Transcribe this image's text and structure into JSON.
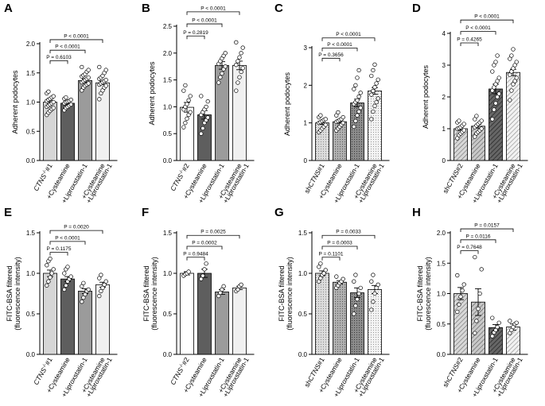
{
  "chart_data": [
    {
      "panel": "A",
      "type": "bar",
      "ylabel": "Adherent podocytes",
      "ylim": [
        0,
        2.0
      ],
      "yticks": [
        "0.0",
        "0.5",
        "1.0",
        "1.5",
        "2.0"
      ],
      "categories": [
        {
          "pre": "CTNS",
          "sup": "-/-",
          "post": "#1",
          "italic_pre": true
        },
        {
          "pre": "+Cysteamine"
        },
        {
          "pre": "+Liproxstatin-1"
        },
        {
          "pre": "+Cysteamine",
          "line2": "+Liproxstatin-1"
        }
      ],
      "values": [
        1.0,
        0.98,
        1.37,
        1.33
      ],
      "sem": [
        0.03,
        0.025,
        0.03,
        0.03
      ],
      "fills": [
        "solid-light",
        "solid-dark",
        "solid-mid",
        "solid-pale"
      ],
      "points": [
        [
          0.78,
          0.82,
          0.85,
          0.88,
          0.9,
          0.92,
          0.94,
          0.96,
          0.98,
          1.0,
          1.02,
          1.04,
          1.06,
          1.08,
          1.1,
          1.15,
          1.18
        ],
        [
          0.86,
          0.9,
          0.92,
          0.94,
          0.96,
          0.98,
          1.0,
          1.01,
          1.02,
          1.04,
          1.06,
          1.08
        ],
        [
          1.2,
          1.25,
          1.28,
          1.3,
          1.32,
          1.34,
          1.36,
          1.38,
          1.4,
          1.42,
          1.44,
          1.46,
          1.48,
          1.52,
          1.55,
          1.6
        ],
        [
          1.05,
          1.15,
          1.2,
          1.25,
          1.28,
          1.3,
          1.32,
          1.34,
          1.36,
          1.38,
          1.4,
          1.42,
          1.45,
          1.5,
          1.55,
          1.6
        ]
      ],
      "comparisons": [
        {
          "from": 0,
          "to": 1,
          "label": "P = 0.6103"
        },
        {
          "from": 0,
          "to": 2,
          "label": "P < 0.0001"
        },
        {
          "from": 0,
          "to": 3,
          "label": "P < 0.0001"
        }
      ]
    },
    {
      "panel": "B",
      "type": "bar",
      "ylabel": "Adherent podocytes",
      "ylim": [
        0,
        2.5
      ],
      "yticks": [
        "0.0",
        "0.5",
        "1.0",
        "1.5",
        "2.0",
        "2.5"
      ],
      "categories": [
        {
          "pre": "CTNS",
          "sup": "-/-",
          "post": "#2",
          "italic_pre": true
        },
        {
          "pre": "+Cysteamine"
        },
        {
          "pre": "+Liproxstatin-1"
        },
        {
          "pre": "+Cysteamine",
          "line2": "+Liproxstatin-1"
        }
      ],
      "values": [
        0.99,
        0.85,
        1.77,
        1.77
      ],
      "sem": [
        0.09,
        0.08,
        0.07,
        0.08
      ],
      "fills": [
        "open",
        "solid-dark",
        "solid-mid",
        "solid-pale"
      ],
      "points": [
        [
          0.62,
          0.7,
          0.78,
          0.85,
          0.9,
          0.95,
          1.0,
          1.05,
          1.12,
          1.2,
          1.3,
          1.4
        ],
        [
          0.5,
          0.6,
          0.7,
          0.75,
          0.8,
          0.85,
          0.9,
          0.95,
          1.0,
          1.1,
          1.2
        ],
        [
          1.45,
          1.55,
          1.62,
          1.7,
          1.75,
          1.8,
          1.85,
          1.9,
          1.95,
          2.0
        ],
        [
          1.3,
          1.45,
          1.55,
          1.65,
          1.72,
          1.78,
          1.85,
          1.92,
          2.0,
          2.1,
          2.2
        ]
      ],
      "comparisons": [
        {
          "from": 0,
          "to": 1,
          "label": "P = 0.2819"
        },
        {
          "from": 0,
          "to": 2,
          "label": "P < 0.0001"
        },
        {
          "from": 0,
          "to": 3,
          "label": "P < 0.0001"
        }
      ]
    },
    {
      "panel": "C",
      "type": "bar",
      "ylabel": "Adherent podocytes",
      "ylim": [
        0,
        3
      ],
      "yticks": [
        "0",
        "1",
        "2",
        "3"
      ],
      "categories": [
        {
          "pre": "sh",
          "mid": "CTNS",
          "post": "#1",
          "italic_mid": true
        },
        {
          "pre": "+Cysteamine"
        },
        {
          "pre": "+Liproxstatin-1"
        },
        {
          "pre": "+Cysteamine",
          "line2": "+Liproxstatin-1"
        }
      ],
      "values": [
        1.0,
        1.03,
        1.53,
        1.85
      ],
      "sem": [
        0.04,
        0.04,
        0.1,
        0.09
      ],
      "fills": [
        "dot-light",
        "dot-dark",
        "dot-mid",
        "dot-pale"
      ],
      "points": [
        [
          0.75,
          0.8,
          0.85,
          0.9,
          0.95,
          1.0,
          1.02,
          1.05,
          1.08,
          1.1,
          1.15,
          1.2
        ],
        [
          0.8,
          0.85,
          0.9,
          0.95,
          1.0,
          1.03,
          1.05,
          1.08,
          1.1,
          1.15,
          1.2,
          1.28
        ],
        [
          0.9,
          1.05,
          1.2,
          1.3,
          1.4,
          1.5,
          1.55,
          1.6,
          1.7,
          1.8,
          1.9,
          2.0,
          2.2,
          2.4
        ],
        [
          1.1,
          1.3,
          1.45,
          1.55,
          1.65,
          1.75,
          1.85,
          1.95,
          2.05,
          2.15,
          2.25,
          2.4,
          2.55
        ]
      ],
      "comparisons": [
        {
          "from": 0,
          "to": 1,
          "label": "P = 0.3656"
        },
        {
          "from": 0,
          "to": 2,
          "label": "P < 0.0001"
        },
        {
          "from": 0,
          "to": 3,
          "label": "P < 0.0001"
        }
      ]
    },
    {
      "panel": "D",
      "type": "bar",
      "ylabel": "Adherent podocytes",
      "ylim": [
        0,
        4
      ],
      "yticks": [
        "0",
        "1",
        "2",
        "3",
        "4"
      ],
      "categories": [
        {
          "pre": "sh",
          "mid": "CTNS",
          "post": "#2",
          "italic_mid": true
        },
        {
          "pre": "+Cysteamine"
        },
        {
          "pre": "+Liproxstatin-1"
        },
        {
          "pre": "+Cysteamine",
          "line2": "+Liproxstatin-1"
        }
      ],
      "values": [
        1.0,
        1.08,
        2.25,
        2.77
      ],
      "sem": [
        0.05,
        0.06,
        0.15,
        0.1
      ],
      "fills": [
        "hatch-light",
        "hatch-light2",
        "hatch-dark",
        "hatch-pale"
      ],
      "points": [
        [
          0.7,
          0.8,
          0.85,
          0.9,
          0.95,
          1.0,
          1.02,
          1.05,
          1.1,
          1.15,
          1.2,
          1.25
        ],
        [
          0.75,
          0.85,
          0.9,
          0.95,
          1.0,
          1.05,
          1.1,
          1.15,
          1.2,
          1.25,
          1.3,
          1.4
        ],
        [
          1.3,
          1.6,
          1.8,
          2.0,
          2.1,
          2.2,
          2.3,
          2.4,
          2.5,
          2.6,
          2.8,
          3.0,
          3.1,
          3.3
        ],
        [
          1.9,
          2.2,
          2.4,
          2.5,
          2.6,
          2.7,
          2.8,
          2.9,
          3.0,
          3.1,
          3.2,
          3.3,
          3.5
        ]
      ],
      "comparisons": [
        {
          "from": 0,
          "to": 1,
          "label": "P = 0.4265"
        },
        {
          "from": 0,
          "to": 2,
          "label": "P < 0.0001"
        },
        {
          "from": 0,
          "to": 3,
          "label": "P < 0.0001"
        }
      ]
    },
    {
      "panel": "E",
      "type": "bar",
      "ylabel": "FITC-BSA filtered",
      "ylabel2": "(fluorescence intensity)",
      "ylim": [
        0,
        1.5
      ],
      "yticks": [
        "0.0",
        "0.5",
        "1.0",
        "1.5"
      ],
      "categories": [
        {
          "pre": "CTNS",
          "sup": "-/-",
          "post": "#1",
          "italic_pre": true
        },
        {
          "pre": "+Cysteamine"
        },
        {
          "pre": "+Liproxstatin-1"
        },
        {
          "pre": "+Cysteamine",
          "line2": "+Liproxstatin-1"
        }
      ],
      "values": [
        1.0,
        0.93,
        0.78,
        0.86
      ],
      "sem": [
        0.04,
        0.03,
        0.03,
        0.03
      ],
      "fills": [
        "solid-light",
        "solid-dark",
        "solid-mid",
        "solid-pale"
      ],
      "points": [
        [
          0.85,
          0.9,
          0.95,
          1.0,
          1.05,
          1.1,
          1.15,
          1.18
        ],
        [
          0.8,
          0.85,
          0.9,
          0.93,
          0.96,
          1.0,
          1.05,
          1.08
        ],
        [
          0.65,
          0.7,
          0.74,
          0.78,
          0.8,
          0.84,
          0.88
        ],
        [
          0.72,
          0.78,
          0.82,
          0.86,
          0.9,
          0.94,
          0.98
        ]
      ],
      "comparisons": [
        {
          "from": 0,
          "to": 1,
          "label": "P = 0.1175"
        },
        {
          "from": 0,
          "to": 2,
          "label": "P < 0.0001"
        },
        {
          "from": 0,
          "to": 3,
          "label": "P = 0.0020"
        }
      ]
    },
    {
      "panel": "F",
      "type": "bar",
      "ylabel": "FITC-BSA filtered",
      "ylabel2": "(fluorescence intensity)",
      "ylim": [
        0,
        1.5
      ],
      "yticks": [
        "0.0",
        "0.5",
        "1.0",
        "1.5"
      ],
      "categories": [
        {
          "pre": "CTNS",
          "sup": "-/-",
          "post": "#2",
          "italic_pre": true
        },
        {
          "pre": "+Cysteamine"
        },
        {
          "pre": "+Liproxstatin-1"
        },
        {
          "pre": "+Cysteamine",
          "line2": "+Liproxstatin-1"
        }
      ],
      "values": [
        1.0,
        1.0,
        0.77,
        0.82
      ],
      "sem": [
        0.02,
        0.05,
        0.03,
        0.02
      ],
      "fills": [
        "open",
        "solid-dark",
        "solid-mid",
        "solid-pale"
      ],
      "points": [
        [
          0.97,
          0.99,
          1.0,
          1.02
        ],
        [
          0.93,
          0.97,
          1.05,
          1.12
        ],
        [
          0.72,
          0.76,
          0.8,
          0.84
        ],
        [
          0.78,
          0.8,
          0.84,
          0.86
        ]
      ],
      "comparisons": [
        {
          "from": 0,
          "to": 1,
          "label": "P = 0.9484"
        },
        {
          "from": 0,
          "to": 2,
          "label": "P = 0.0002"
        },
        {
          "from": 0,
          "to": 3,
          "label": "P = 0.0025"
        }
      ]
    },
    {
      "panel": "G",
      "type": "bar",
      "ylabel": "FITC-BSA filtered",
      "ylabel2": "(fluorescence intensity)",
      "ylim": [
        0,
        1.5
      ],
      "yticks": [
        "0.0",
        "0.5",
        "1.0",
        "1.5"
      ],
      "categories": [
        {
          "pre": "sh",
          "mid": "CTNS",
          "post": "#1",
          "italic_mid": true
        },
        {
          "pre": "+Cysteamine"
        },
        {
          "pre": "+Liproxstatin-1"
        },
        {
          "pre": "+Cysteamine",
          "line2": "+Liproxstatin-1"
        }
      ],
      "values": [
        1.0,
        0.89,
        0.76,
        0.8
      ],
      "sem": [
        0.03,
        0.02,
        0.06,
        0.05
      ],
      "fills": [
        "dot-light",
        "dot-dark",
        "dot-mid",
        "dot-pale"
      ],
      "points": [
        [
          0.9,
          0.94,
          0.98,
          1.0,
          1.04,
          1.08,
          1.12
        ],
        [
          0.82,
          0.85,
          0.88,
          0.9,
          0.93,
          0.96
        ],
        [
          0.5,
          0.6,
          0.68,
          0.75,
          0.82,
          0.9,
          0.98
        ],
        [
          0.55,
          0.65,
          0.75,
          0.82,
          0.86,
          0.9,
          0.98
        ]
      ],
      "comparisons": [
        {
          "from": 0,
          "to": 1,
          "label": "P = 0.1101"
        },
        {
          "from": 0,
          "to": 2,
          "label": "P = 0.0003"
        },
        {
          "from": 0,
          "to": 3,
          "label": "P = 0.0033"
        }
      ]
    },
    {
      "panel": "H",
      "type": "bar",
      "ylabel": "FITC-BSA filtered",
      "ylabel2": "(fluorescence intensity)",
      "ylim": [
        0,
        2.0
      ],
      "yticks": [
        "0.0",
        "0.5",
        "1.0",
        "1.5",
        "2.0"
      ],
      "categories": [
        {
          "pre": "sh",
          "mid": "CTNS",
          "post": "#2",
          "italic_mid": true
        },
        {
          "pre": "+Cysteamine"
        },
        {
          "pre": "+Liproxstatin-1"
        },
        {
          "pre": "+Cysteamine",
          "line2": "+Liproxstatin-1"
        }
      ],
      "values": [
        1.0,
        0.86,
        0.44,
        0.45
      ],
      "sem": [
        0.1,
        0.22,
        0.05,
        0.05
      ],
      "fills": [
        "hatch-light",
        "hatch-light2",
        "hatch-dark",
        "hatch-pale"
      ],
      "points": [
        [
          0.7,
          0.82,
          0.95,
          1.05,
          1.15,
          1.3
        ],
        [
          0.35,
          0.55,
          0.75,
          1.0,
          1.4,
          1.6
        ],
        [
          0.3,
          0.36,
          0.4,
          0.45,
          0.52,
          0.6
        ],
        [
          0.35,
          0.4,
          0.45,
          0.5,
          0.52,
          0.55
        ]
      ],
      "comparisons": [
        {
          "from": 0,
          "to": 1,
          "label": "P = 0.7648"
        },
        {
          "from": 0,
          "to": 2,
          "label": "P = 0.0116"
        },
        {
          "from": 0,
          "to": 3,
          "label": "P = 0.0157"
        }
      ]
    }
  ]
}
